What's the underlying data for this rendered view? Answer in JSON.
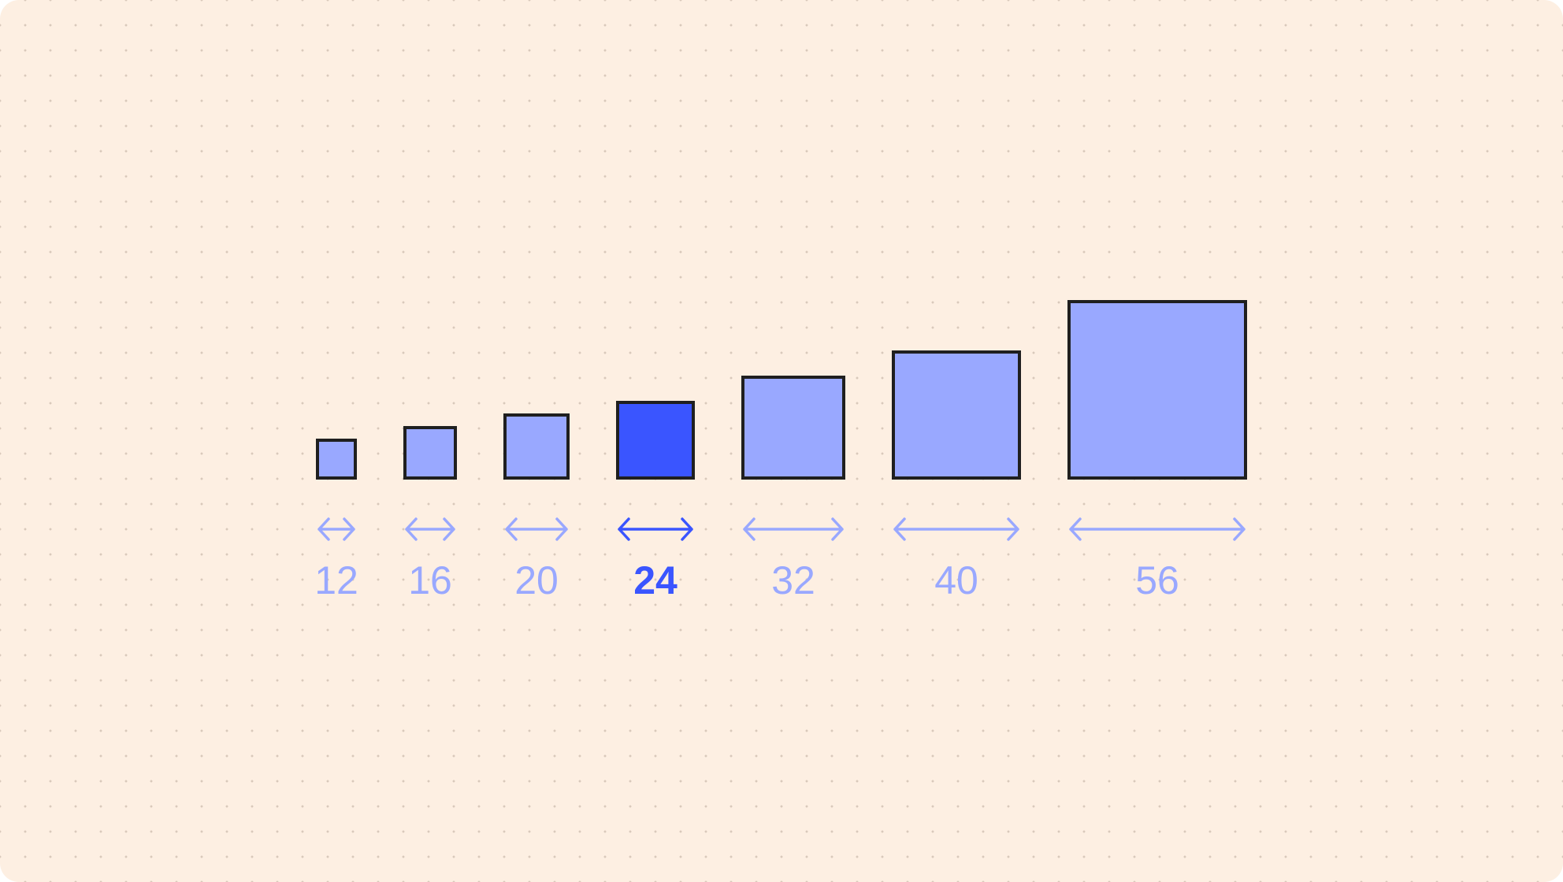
{
  "sizes": [
    {
      "value": 12,
      "color": "#99a8ff",
      "font_weight": "normal"
    },
    {
      "value": 16,
      "color": "#99a8ff",
      "font_weight": "normal"
    },
    {
      "value": 20,
      "color": "#99a8ff",
      "font_weight": "normal"
    },
    {
      "value": 24,
      "color": "#3a55ff",
      "font_weight": "bold"
    },
    {
      "value": 32,
      "color": "#99a8ff",
      "font_weight": "normal"
    },
    {
      "value": 40,
      "color": "#99a8ff",
      "font_weight": "normal"
    },
    {
      "value": 56,
      "color": "#99a8ff",
      "font_weight": "normal"
    }
  ]
}
